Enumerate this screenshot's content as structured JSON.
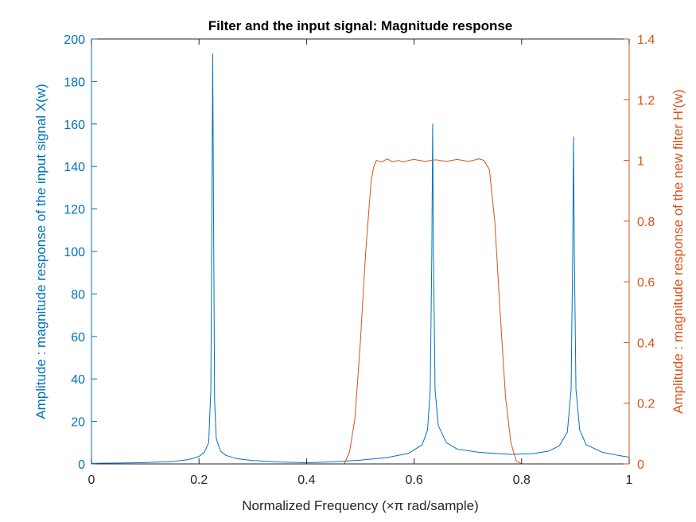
{
  "chart_data": {
    "type": "line",
    "title": "Filter and the input signal: Magnitude response",
    "xlabel": "Normalized Frequency (×π rad/sample)",
    "ylabel_left": "Amplitude : magnitude response of the input signal X(w)",
    "ylabel_right": "Amplitude : magnitude response of the new filter H'(w)",
    "xlim": [
      0,
      1
    ],
    "ylim_left": [
      0,
      200
    ],
    "ylim_right": [
      0,
      1.4
    ],
    "grid": false,
    "xticks": [
      "0",
      "0.2",
      "0.4",
      "0.6",
      "0.8",
      "1"
    ],
    "yticks_left": [
      "0",
      "20",
      "40",
      "60",
      "80",
      "100",
      "120",
      "140",
      "160",
      "180",
      "200"
    ],
    "yticks_right": [
      "0",
      "0.2",
      "0.4",
      "0.6",
      "0.8",
      "1",
      "1.2",
      "1.4"
    ],
    "colors": {
      "left": "#0072BD",
      "right": "#D95319",
      "axis_text": "#262626"
    },
    "series": [
      {
        "axis": "left",
        "points": [
          [
            0,
            0.3
          ],
          [
            0.05,
            0.4
          ],
          [
            0.1,
            0.6
          ],
          [
            0.15,
            1.1
          ],
          [
            0.18,
            2.0
          ],
          [
            0.2,
            3.5
          ],
          [
            0.21,
            5.5
          ],
          [
            0.218,
            10
          ],
          [
            0.222,
            35
          ],
          [
            0.224,
            120
          ],
          [
            0.2255,
            193
          ],
          [
            0.227,
            120
          ],
          [
            0.229,
            30
          ],
          [
            0.232,
            12
          ],
          [
            0.24,
            6
          ],
          [
            0.25,
            4
          ],
          [
            0.27,
            2.5
          ],
          [
            0.3,
            1.6
          ],
          [
            0.35,
            0.9
          ],
          [
            0.38,
            0.7
          ],
          [
            0.4,
            0.5
          ],
          [
            0.45,
            1.0
          ],
          [
            0.5,
            1.8
          ],
          [
            0.55,
            3.0
          ],
          [
            0.59,
            5.0
          ],
          [
            0.615,
            9
          ],
          [
            0.625,
            16
          ],
          [
            0.63,
            35
          ],
          [
            0.633,
            100
          ],
          [
            0.6345,
            160
          ],
          [
            0.636,
            100
          ],
          [
            0.639,
            35
          ],
          [
            0.645,
            18
          ],
          [
            0.66,
            10
          ],
          [
            0.68,
            7
          ],
          [
            0.72,
            5.5
          ],
          [
            0.78,
            4.5
          ],
          [
            0.82,
            4.8
          ],
          [
            0.85,
            6.0
          ],
          [
            0.87,
            8.5
          ],
          [
            0.885,
            15
          ],
          [
            0.892,
            35
          ],
          [
            0.895,
            100
          ],
          [
            0.8965,
            154
          ],
          [
            0.898,
            100
          ],
          [
            0.901,
            35
          ],
          [
            0.908,
            16
          ],
          [
            0.92,
            9
          ],
          [
            0.95,
            5.5
          ],
          [
            0.98,
            4.0
          ],
          [
            1.0,
            3.2
          ]
        ]
      },
      {
        "axis": "right",
        "points": [
          [
            0,
            0
          ],
          [
            0.47,
            0
          ],
          [
            0.48,
            0.04
          ],
          [
            0.49,
            0.15
          ],
          [
            0.5,
            0.4
          ],
          [
            0.51,
            0.7
          ],
          [
            0.52,
            0.93
          ],
          [
            0.525,
            0.98
          ],
          [
            0.53,
            1.0
          ],
          [
            0.54,
            0.995
          ],
          [
            0.55,
            1.005
          ],
          [
            0.56,
            0.995
          ],
          [
            0.57,
            1.0
          ],
          [
            0.58,
            0.995
          ],
          [
            0.59,
            1.0
          ],
          [
            0.6,
            1.003
          ],
          [
            0.62,
            0.997
          ],
          [
            0.64,
            1.002
          ],
          [
            0.66,
            0.997
          ],
          [
            0.68,
            1.003
          ],
          [
            0.7,
            0.997
          ],
          [
            0.71,
            1.0
          ],
          [
            0.72,
            1.005
          ],
          [
            0.73,
            1.0
          ],
          [
            0.74,
            0.97
          ],
          [
            0.75,
            0.8
          ],
          [
            0.76,
            0.5
          ],
          [
            0.77,
            0.22
          ],
          [
            0.78,
            0.07
          ],
          [
            0.79,
            0.01
          ],
          [
            0.8,
            0
          ],
          [
            1.0,
            0
          ]
        ]
      }
    ]
  }
}
